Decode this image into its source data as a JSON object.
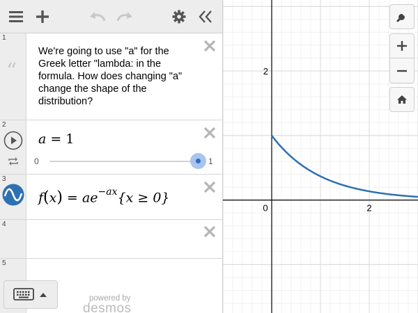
{
  "toolbar": {
    "menu_icon": "hamburger-menu-icon",
    "add_icon": "plus-icon",
    "undo_icon": "undo-arrow-icon",
    "redo_icon": "redo-arrow-icon",
    "settings_icon": "gear-icon",
    "collapse_icon": "double-chevron-left-icon"
  },
  "expressions": [
    {
      "number": "1",
      "type": "note",
      "text": "We're going to use \"a\" for the Greek letter \"lambda: in the formula.  How does changing \"a\" change the shape of the distribution?"
    },
    {
      "number": "2",
      "type": "slider",
      "variable": "a",
      "equals": "=",
      "value": "1",
      "min": "0",
      "max": "1",
      "value_fraction": 1.0
    },
    {
      "number": "3",
      "type": "expression",
      "color": "#2d70b3",
      "parts": {
        "f": "f",
        "lparen": "(",
        "x": "x",
        "rparen": ")",
        "eq": "=",
        "a": "a",
        "e": "e",
        "exp": "−ax",
        "restriction": "{x ≥ 0}"
      }
    },
    {
      "number": "4",
      "type": "empty"
    },
    {
      "number": "5",
      "type": "empty"
    }
  ],
  "footer": {
    "powered_by": "powered by",
    "brand": "desmos"
  },
  "graph": {
    "x_range": [
      -1,
      3
    ],
    "y_range": [
      -1.75,
      3.1
    ],
    "gridline_step": 1,
    "labels": {
      "y2": "2",
      "x0": "0",
      "x2": "2"
    },
    "curve_color": "#2d70b3",
    "function": "a*exp(-a*x), x>=0"
  },
  "right_controls": {
    "settings_icon": "wrench-icon",
    "zoom_in_icon": "plus-icon",
    "zoom_out_icon": "minus-icon",
    "home_icon": "home-icon"
  }
}
